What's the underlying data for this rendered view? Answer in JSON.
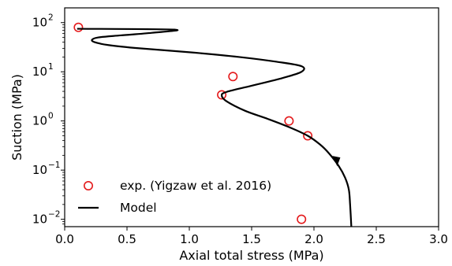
{
  "chart_data": {
    "type": "line",
    "xlabel": "Axial total stress (MPa)",
    "ylabel": "Suction (MPa)",
    "xlim": [
      0.0,
      3.0
    ],
    "ylim_log10": [
      -2.15,
      2.3
    ],
    "yscale": "log",
    "xticks": [
      "0.0",
      "0.5",
      "1.0",
      "1.5",
      "2.0",
      "2.5",
      "3.0"
    ],
    "yticks": [
      {
        "value": 0.01,
        "base": "10",
        "exp": "−2"
      },
      {
        "value": 0.1,
        "base": "10",
        "exp": "−1"
      },
      {
        "value": 1,
        "base": "10",
        "exp": "0"
      },
      {
        "value": 10,
        "base": "10",
        "exp": "1"
      },
      {
        "value": 100,
        "base": "10",
        "exp": "2"
      }
    ],
    "legend_position": "lower-left",
    "series": [
      {
        "name": "exp. (Yigzaw et al. 2016)",
        "kind": "scatter",
        "color": "#e41a1c",
        "marker": "open-circle",
        "points": [
          {
            "x": 0.11,
            "y": 80
          },
          {
            "x": 1.35,
            "y": 8.0
          },
          {
            "x": 1.26,
            "y": 3.4
          },
          {
            "x": 1.8,
            "y": 1.0
          },
          {
            "x": 1.95,
            "y": 0.5
          },
          {
            "x": 1.9,
            "y": 0.01
          }
        ]
      },
      {
        "name": "Model",
        "kind": "line",
        "color": "#000000",
        "points": [
          {
            "x": 0.1,
            "y": 75
          },
          {
            "x": 0.88,
            "y": 72
          },
          {
            "x": 0.7,
            "y": 62
          },
          {
            "x": 0.45,
            "y": 55
          },
          {
            "x": 0.27,
            "y": 50
          },
          {
            "x": 0.22,
            "y": 45
          },
          {
            "x": 0.24,
            "y": 40
          },
          {
            "x": 0.35,
            "y": 35
          },
          {
            "x": 0.6,
            "y": 30
          },
          {
            "x": 1.0,
            "y": 25
          },
          {
            "x": 1.4,
            "y": 20
          },
          {
            "x": 1.7,
            "y": 16
          },
          {
            "x": 1.9,
            "y": 13
          },
          {
            "x": 1.9,
            "y": 10
          },
          {
            "x": 1.75,
            "y": 7.5
          },
          {
            "x": 1.5,
            "y": 5.2
          },
          {
            "x": 1.3,
            "y": 3.9
          },
          {
            "x": 1.26,
            "y": 3.3
          },
          {
            "x": 1.3,
            "y": 2.5
          },
          {
            "x": 1.45,
            "y": 1.6
          },
          {
            "x": 1.63,
            "y": 1.1
          },
          {
            "x": 1.8,
            "y": 0.75
          },
          {
            "x": 1.95,
            "y": 0.5
          },
          {
            "x": 2.05,
            "y": 0.33
          },
          {
            "x": 2.12,
            "y": 0.22
          },
          {
            "x": 2.2,
            "y": 0.12
          },
          {
            "x": 2.25,
            "y": 0.07
          },
          {
            "x": 2.28,
            "y": 0.04
          },
          {
            "x": 2.29,
            "y": 0.02
          },
          {
            "x": 2.3,
            "y": 0.007
          }
        ],
        "arrow_at": {
          "x": 2.18,
          "y": 0.145
        }
      }
    ]
  }
}
